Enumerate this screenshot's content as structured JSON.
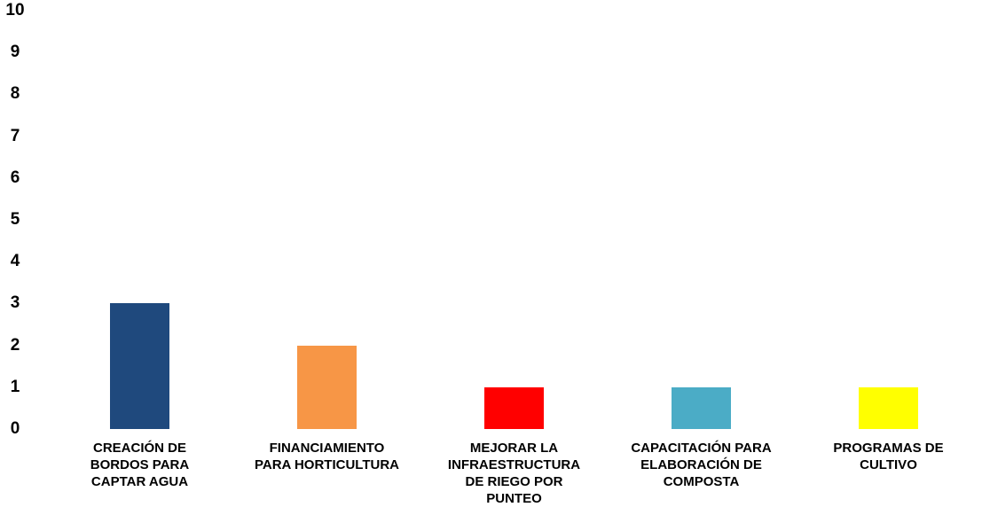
{
  "chart_data": {
    "type": "bar",
    "title": "",
    "xlabel": "",
    "ylabel": "",
    "ylim": [
      0,
      10
    ],
    "yticks": [
      0,
      1,
      2,
      3,
      4,
      5,
      6,
      7,
      8,
      9,
      10
    ],
    "grid": false,
    "legend": "none",
    "categories": [
      [
        "CREACIÓN DE",
        "BORDOS PARA",
        "CAPTAR AGUA"
      ],
      [
        "FINANCIAMIENTO",
        "PARA HORTICULTURA"
      ],
      [
        "MEJORAR LA",
        "INFRAESTRUCTURA",
        "DE RIEGO POR",
        "PUNTEO"
      ],
      [
        "CAPACITACIÓN PARA",
        "ELABORACIÓN DE",
        "COMPOSTA"
      ],
      [
        "PROGRAMAS DE",
        "CULTIVO"
      ]
    ],
    "values": [
      3,
      2,
      1,
      1,
      1
    ],
    "colors": [
      "#1F497D",
      "#F79646",
      "#FF0000",
      "#4BACC6",
      "#FFFF00"
    ]
  }
}
